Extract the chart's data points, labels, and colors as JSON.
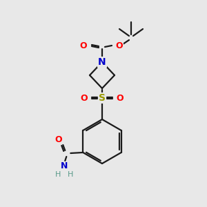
{
  "background_color": "#e8e8e8",
  "bond_color": "#1a1a1a",
  "atom_colors": {
    "O": "#ff0000",
    "N": "#0000cc",
    "S": "#999900",
    "C": "#1a1a1a",
    "H": "#5a9a8a"
  },
  "figsize": [
    3.0,
    3.0
  ],
  "dpi": 100,
  "bond_lw": 1.6
}
